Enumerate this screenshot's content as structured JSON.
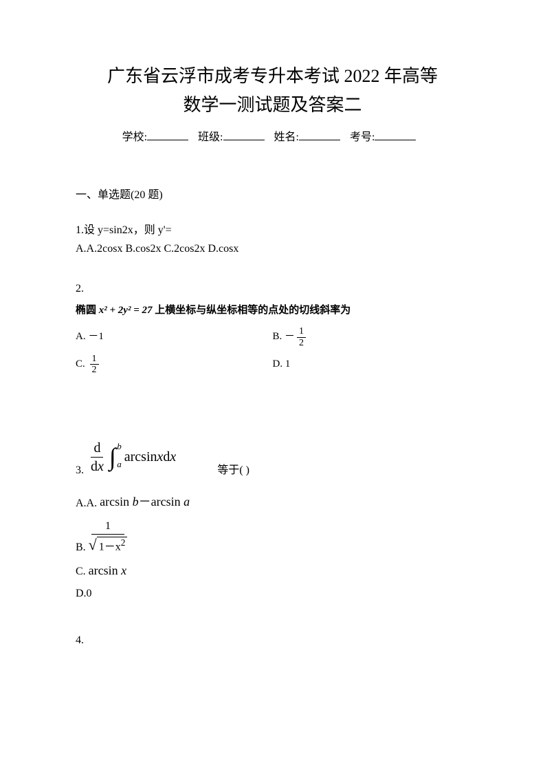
{
  "title_line1": "广东省云浮市成考专升本考试 2022 年高等",
  "title_line2": "数学一测试题及答案二",
  "form": {
    "school": "学校:",
    "class": "班级:",
    "name": "姓名:",
    "id": "考号:"
  },
  "section": "一、单选题(20 题)",
  "q1": {
    "text": "1.设 y=sin2x，则 y'=",
    "options": "A.A.2cosx B.cos2x C.2cos2x D.cosx"
  },
  "q2": {
    "number": "2.",
    "prompt_prefix": "椭圆 ",
    "equation": "x² + 2y² = 27",
    "prompt_suffix": " 上横坐标与纵坐标相等的点处的切线斜率为",
    "optA_label": "A.",
    "optA_val": "－1",
    "optB_label": "B.",
    "optB_neg": "－",
    "optB_num": "1",
    "optB_den": "2",
    "optC_label": "C.",
    "optC_num": "1",
    "optC_den": "2",
    "optD_label": "D.",
    "optD_val": "1"
  },
  "q3": {
    "label": "3.",
    "d": "d",
    "dx": "d",
    "x": "x",
    "int_a": "a",
    "int_b": "b",
    "fn": "arcsin ",
    "fx": "x",
    "dxx": " d",
    "tail": "等于(  )",
    "optA_prefix": "A.A.",
    "optA_text1": "arcsin ",
    "optA_b": "b",
    "optA_minus": "－arcsin ",
    "optA_a": "a",
    "optB_prefix": "B.",
    "optB_num": "1",
    "optB_inside": "1－x",
    "optB_sq": "2",
    "optC_prefix": "C.",
    "optC_text": "arcsin ",
    "optC_x": "x",
    "optD_prefix": "D.0"
  },
  "q4": "4."
}
